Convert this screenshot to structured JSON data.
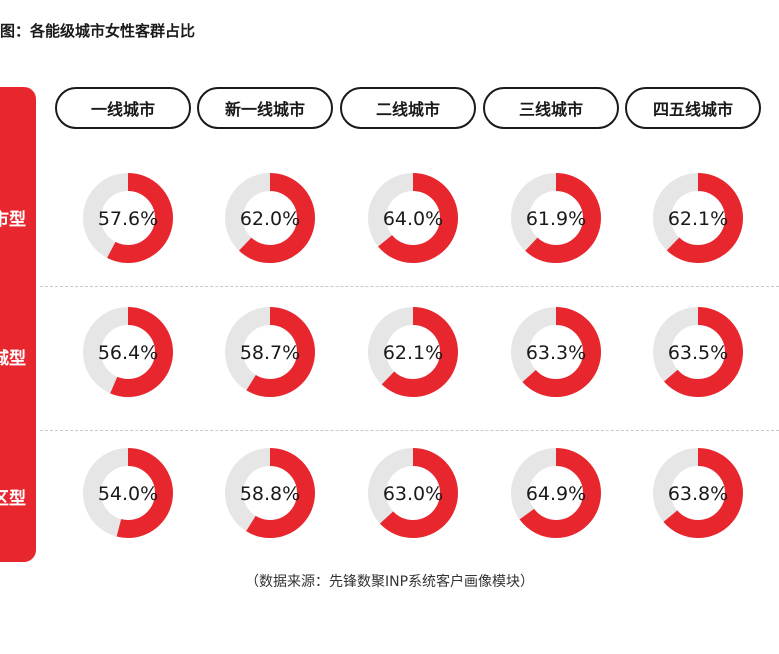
{
  "title": "图：各能级城市女性客群占比",
  "source": "（数据来源：先锋数聚INP系统客户画像模块）",
  "colors": {
    "accent": "#e8262d",
    "track": "#e6e6e6"
  },
  "chart_data": {
    "type": "donut_grid",
    "columns": [
      "一线城市",
      "新一线城市",
      "二线城市",
      "三线城市",
      "四五线城市"
    ],
    "rows": [
      "市型",
      "城型",
      "区型"
    ],
    "values": [
      [
        57.6,
        62.0,
        64.0,
        61.9,
        62.1
      ],
      [
        56.4,
        58.7,
        62.1,
        63.3,
        63.5
      ],
      [
        54.0,
        58.8,
        63.0,
        64.9,
        63.8
      ]
    ],
    "labels": [
      [
        "57.6%",
        "62.0%",
        "64.0%",
        "61.9%",
        "62.1%"
      ],
      [
        "56.4%",
        "58.7%",
        "62.1%",
        "63.3%",
        "63.5%"
      ],
      [
        "54.0%",
        "58.8%",
        "63.0%",
        "64.9%",
        "63.8%"
      ]
    ],
    "unit": "%"
  }
}
